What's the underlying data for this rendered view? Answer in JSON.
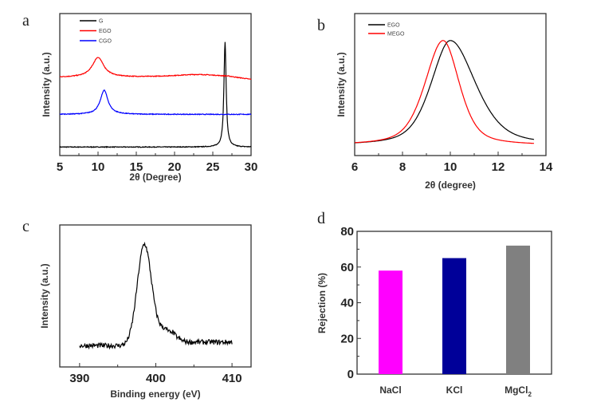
{
  "chart_data": [
    {
      "panel_label": "a",
      "type": "line",
      "xlabel": "2θ (Degree)",
      "ylabel": "Intensity (a.u.)",
      "xlim": [
        5,
        30
      ],
      "xticks": [
        "5",
        "10",
        "15",
        "20",
        "25",
        "30"
      ],
      "ylim": [
        0,
        100
      ],
      "yticks_shown": false,
      "grid": false,
      "legend_placement": "top-left",
      "series": [
        {
          "name": "G",
          "color": "#000000",
          "baseline": 6,
          "peaks": [
            {
              "position": 26.6,
              "height": 74,
              "fwhm": 0.35
            }
          ]
        },
        {
          "name": "EGO",
          "color": "#ff0000",
          "baseline": 55,
          "peaks": [
            {
              "position": 10.0,
              "height": 14,
              "fwhm": 1.8
            },
            {
              "position": 23,
              "height": 2,
              "fwhm": 8
            }
          ]
        },
        {
          "name": "CGO",
          "color": "#0000ff",
          "baseline": 29,
          "peaks": [
            {
              "position": 10.8,
              "height": 17,
              "fwhm": 1.2
            }
          ]
        }
      ]
    },
    {
      "panel_label": "b",
      "type": "line",
      "xlabel": "2θ (degree)",
      "ylabel": "Intensity (a.u.)",
      "xlim": [
        6,
        14
      ],
      "xticks": [
        "6",
        "8",
        "10",
        "12",
        "14"
      ],
      "ylim": [
        0,
        100
      ],
      "yticks_shown": false,
      "grid": false,
      "legend_placement": "top-left",
      "series": [
        {
          "name": "EGO",
          "color": "#000000",
          "baseline": 7,
          "x_range": [
            6,
            13.5
          ],
          "peaks": [
            {
              "position": 10.0,
              "height": 74,
              "hwhm_left": 0.95,
              "hwhm_right": 1.25
            }
          ]
        },
        {
          "name": "MEGO",
          "color": "#ff0000",
          "baseline": 7,
          "x_range": [
            6,
            13.5
          ],
          "peaks": [
            {
              "position": 9.7,
              "height": 74,
              "hwhm_left": 0.9,
              "hwhm_right": 0.8
            }
          ]
        }
      ]
    },
    {
      "panel_label": "c",
      "type": "line",
      "xlabel": "Binding energy (eV)",
      "ylabel": "Intensity (a.u.)",
      "xlim": [
        387.4,
        412.5
      ],
      "xticks": [
        "390",
        "400",
        "410"
      ],
      "ylim": [
        0,
        100
      ],
      "yticks_shown": false,
      "grid": false,
      "series": [
        {
          "color": "#000000",
          "baseline": 15,
          "x_range": [
            390,
            410
          ],
          "peaks": [
            {
              "position": 398.5,
              "height": 71,
              "fwhm": 2.2
            },
            {
              "position": 401.2,
              "height": 11,
              "fwhm": 2.5
            }
          ]
        }
      ]
    },
    {
      "panel_label": "d",
      "type": "bar",
      "xlabel": "",
      "ylabel": "Rejection (%)",
      "ylim": [
        0,
        80
      ],
      "yticks": [
        "0",
        "20",
        "40",
        "60",
        "80"
      ],
      "categories": [
        "NaCl",
        "KCl",
        "MgCl2"
      ],
      "category_display": [
        {
          "base": "MgCl",
          "sub": "2"
        }
      ],
      "values": [
        58,
        65,
        72
      ],
      "colors": [
        "#ff00ff",
        "#000099",
        "#808080"
      ],
      "grid": false
    }
  ]
}
